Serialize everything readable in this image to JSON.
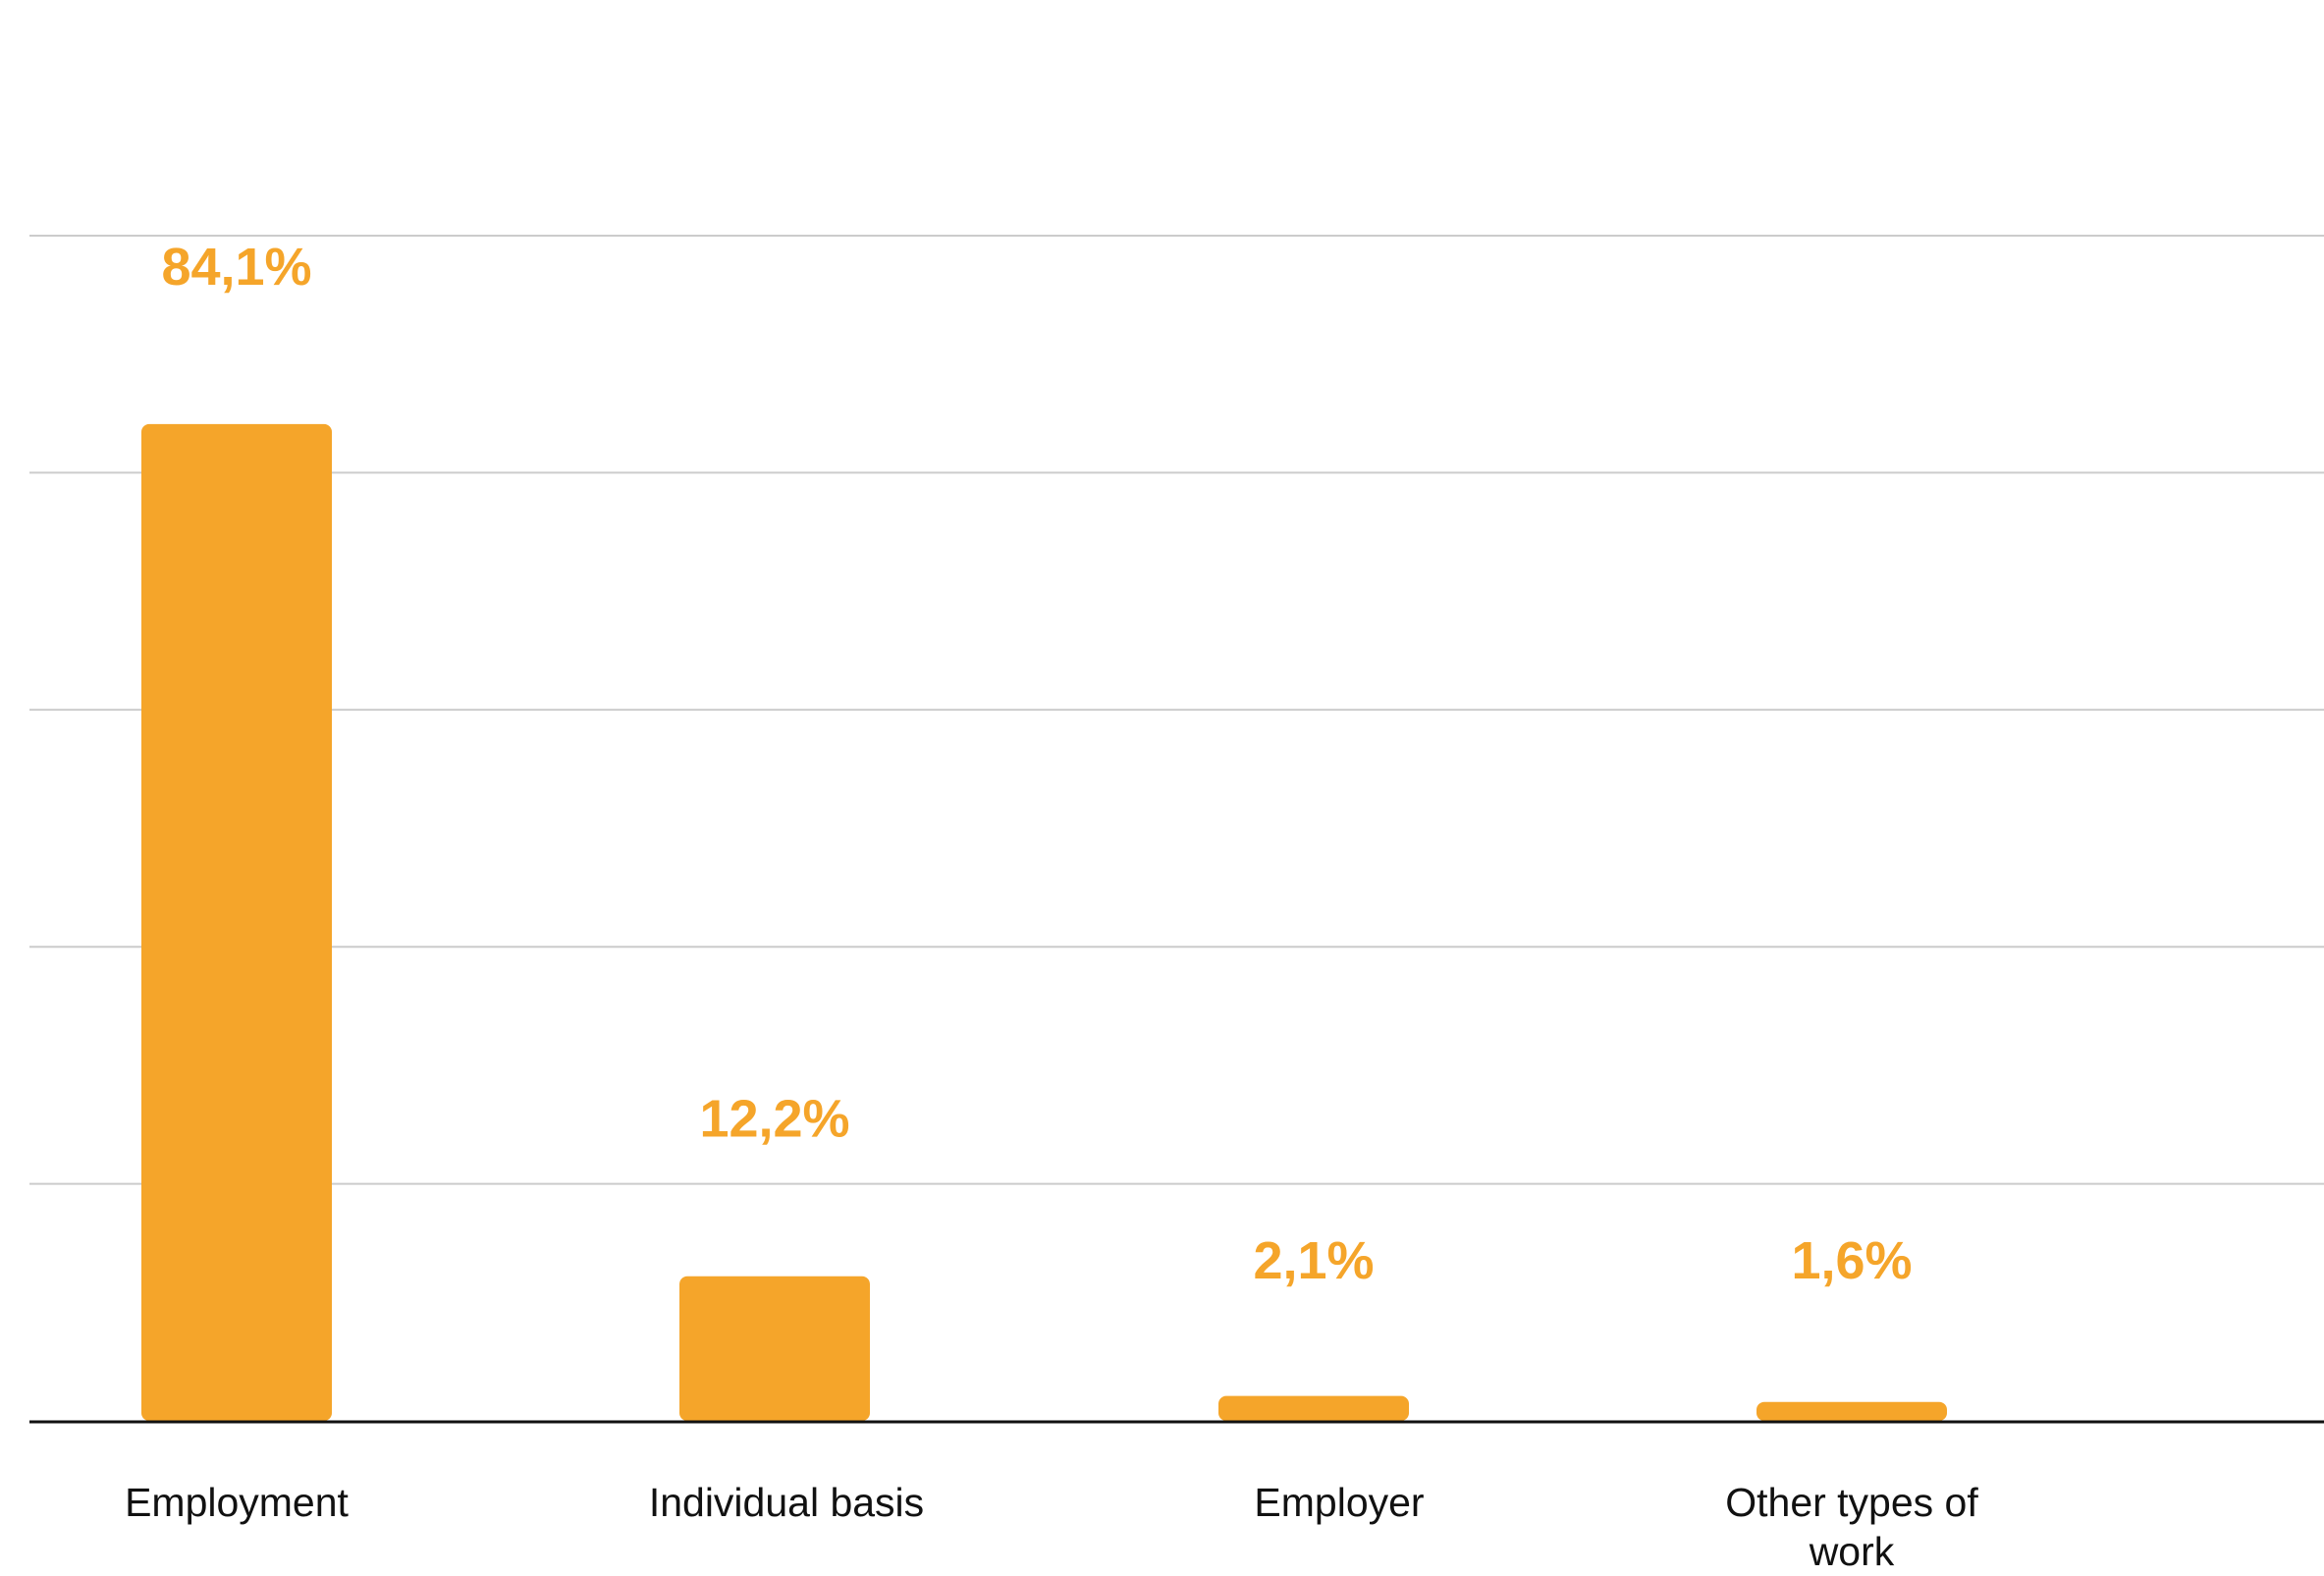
{
  "chart_data": {
    "type": "bar",
    "categories": [
      "Employment",
      "Individual basis",
      "Employer",
      "Other types of work"
    ],
    "values": [
      84.1,
      12.2,
      2.1,
      1.6
    ],
    "value_labels": [
      "84,1%",
      "12,2%",
      "2,1%",
      "1,6%"
    ],
    "ylim": [
      0,
      100
    ],
    "grid": true,
    "legend": "none",
    "title": "",
    "xlabel": "",
    "ylabel": ""
  },
  "colors": {
    "bar": "#F5A52A",
    "value_label": "#F5A52A",
    "grid": "#CCCCCC",
    "axis": "#111111"
  }
}
